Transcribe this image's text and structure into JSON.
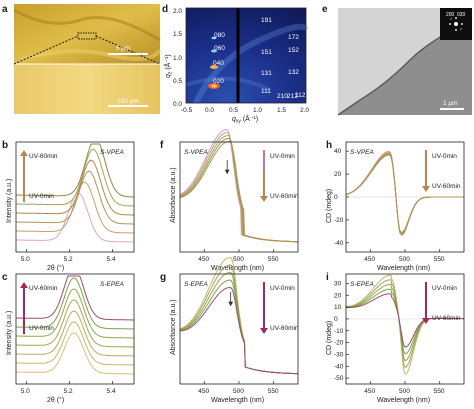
{
  "figure": {
    "panels": {
      "a": {
        "label": "a",
        "scalebar_top": "5 µm",
        "scalebar_bottom": "100 µm"
      },
      "d": {
        "label": "d",
        "ylabel_base": "q",
        "ylabel_sub": "z",
        "ylabel_unit": " (Å⁻¹)",
        "xlabel_base": "q",
        "xlabel_sub": "xy",
        "xlabel_unit": " (Å⁻¹)",
        "yticks": [
          "2.0",
          "1.5",
          "1.0",
          "0.5",
          "0.0"
        ],
        "xticks": [
          "-0.5",
          "0.0",
          "0.5",
          "1.0",
          "1.5",
          "2.0"
        ],
        "peaks": [
          "191",
          "080",
          "060",
          "040",
          "020",
          "172",
          "151",
          "131",
          "111",
          "152",
          "132",
          "112",
          "210",
          "212"
        ]
      },
      "e": {
        "label": "e",
        "scalebar": "1 µm",
        "diffraction_spots": [
          "200",
          "020"
        ]
      },
      "b": {
        "label": "b",
        "sample": "S-VPEA",
        "arrow_top": "UV-60min",
        "arrow_bottom": "UV-0min",
        "ylabel": "Intensity (a.u.)",
        "xlabel": "2θ (°)",
        "xticks": [
          "5.0",
          "5.2",
          "5.4"
        ]
      },
      "f": {
        "label": "f",
        "sample": "S-VPEA",
        "arrow_top": "UV-0min",
        "arrow_bottom": "UV-60min",
        "ylabel": "Absorbance (a.u.)",
        "xlabel": "Wavelength (nm)",
        "xticks": [
          "450",
          "500",
          "550"
        ]
      },
      "h": {
        "label": "h",
        "sample": "S-VPEA",
        "arrow_top": "UV-0min",
        "arrow_bottom": "UV-60min",
        "ylabel": "CD (mdeg)",
        "xlabel": "Wavelength (nm)",
        "yticks": [
          "40",
          "20",
          "0",
          "-20",
          "-40"
        ],
        "xticks": [
          "450",
          "500",
          "550"
        ]
      },
      "c": {
        "label": "c",
        "sample": "S-EPEA",
        "arrow_top": "UV-60min",
        "arrow_bottom": "UV-0min",
        "ylabel": "Intensity (a.u.)",
        "xlabel": "2θ (°)",
        "xticks": [
          "5.0",
          "5.2",
          "5.4"
        ]
      },
      "g": {
        "label": "g",
        "sample": "S-EPEA",
        "arrow_top": "UV-0min",
        "arrow_bottom": "UV-60min",
        "ylabel": "Absorbance (a.u.)",
        "xlabel": "Wavelength (nm)",
        "xticks": [
          "450",
          "500",
          "550"
        ]
      },
      "i": {
        "label": "i",
        "sample": "S-EPEA",
        "arrow_top": "UV-0min",
        "arrow_bottom": "UV-60min",
        "ylabel": "CD (mdeg)",
        "xlabel": "Wavelength (nm)",
        "yticks": [
          "30",
          "20",
          "10",
          "0",
          "-10",
          "-20",
          "-30",
          "-40",
          "-50"
        ],
        "xticks": [
          "450",
          "500",
          "550"
        ]
      }
    },
    "colors": {
      "uv_series": [
        "#e2a4cc",
        "#c9a06a",
        "#b79358",
        "#a88a50",
        "#a9a35a",
        "#8f8a48"
      ],
      "epea_series": [
        "#d9c07a",
        "#c9b56a",
        "#b8ad5e",
        "#a7a455",
        "#8ea84e",
        "#7aa34a",
        "#9f4a6f"
      ],
      "arrow_vpea": "#b8864c",
      "arrow_epea": "#a02a5a"
    }
  },
  "chart_data": [
    {
      "type": "line",
      "panel": "b",
      "xlabel": "2θ (°)",
      "ylabel": "Intensity (a.u.)",
      "xlim": [
        4.95,
        5.5
      ],
      "series_peak_2theta": [
        5.24,
        5.27,
        5.29,
        5.3,
        5.31,
        5.32
      ],
      "offset_stack": true
    },
    {
      "type": "line",
      "panel": "c",
      "xlabel": "2θ (°)",
      "ylabel": "Intensity (a.u.)",
      "xlim": [
        4.95,
        5.5
      ],
      "series_peak_2theta": [
        5.22,
        5.22,
        5.22,
        5.22,
        5.22,
        5.22,
        5.22
      ],
      "offset_stack": true
    },
    {
      "type": "line",
      "panel": "f",
      "xlabel": "Wavelength (nm)",
      "ylabel": "Absorbance (a.u.)",
      "xlim": [
        415,
        585
      ],
      "series_peak_nm": [
        483,
        484,
        485,
        486,
        487
      ]
    },
    {
      "type": "line",
      "panel": "g",
      "xlabel": "Wavelength (nm)",
      "ylabel": "Absorbance (a.u.)",
      "xlim": [
        415,
        585
      ],
      "series_peak_nm": [
        488,
        488,
        488,
        488,
        488
      ]
    },
    {
      "type": "line",
      "panel": "h",
      "xlabel": "Wavelength (nm)",
      "ylabel": "CD (mdeg)",
      "xlim": [
        415,
        585
      ],
      "ylim": [
        -48,
        48
      ],
      "positive_peak": [
        478,
        40
      ],
      "negative_peak": [
        493,
        -36
      ]
    },
    {
      "type": "line",
      "panel": "i",
      "xlabel": "Wavelength (nm)",
      "ylabel": "CD (mdeg)",
      "xlim": [
        415,
        585
      ],
      "ylim": [
        -55,
        38
      ],
      "positive_peak": [
        480,
        33
      ],
      "negative_peak": [
        500,
        -48
      ]
    }
  ]
}
